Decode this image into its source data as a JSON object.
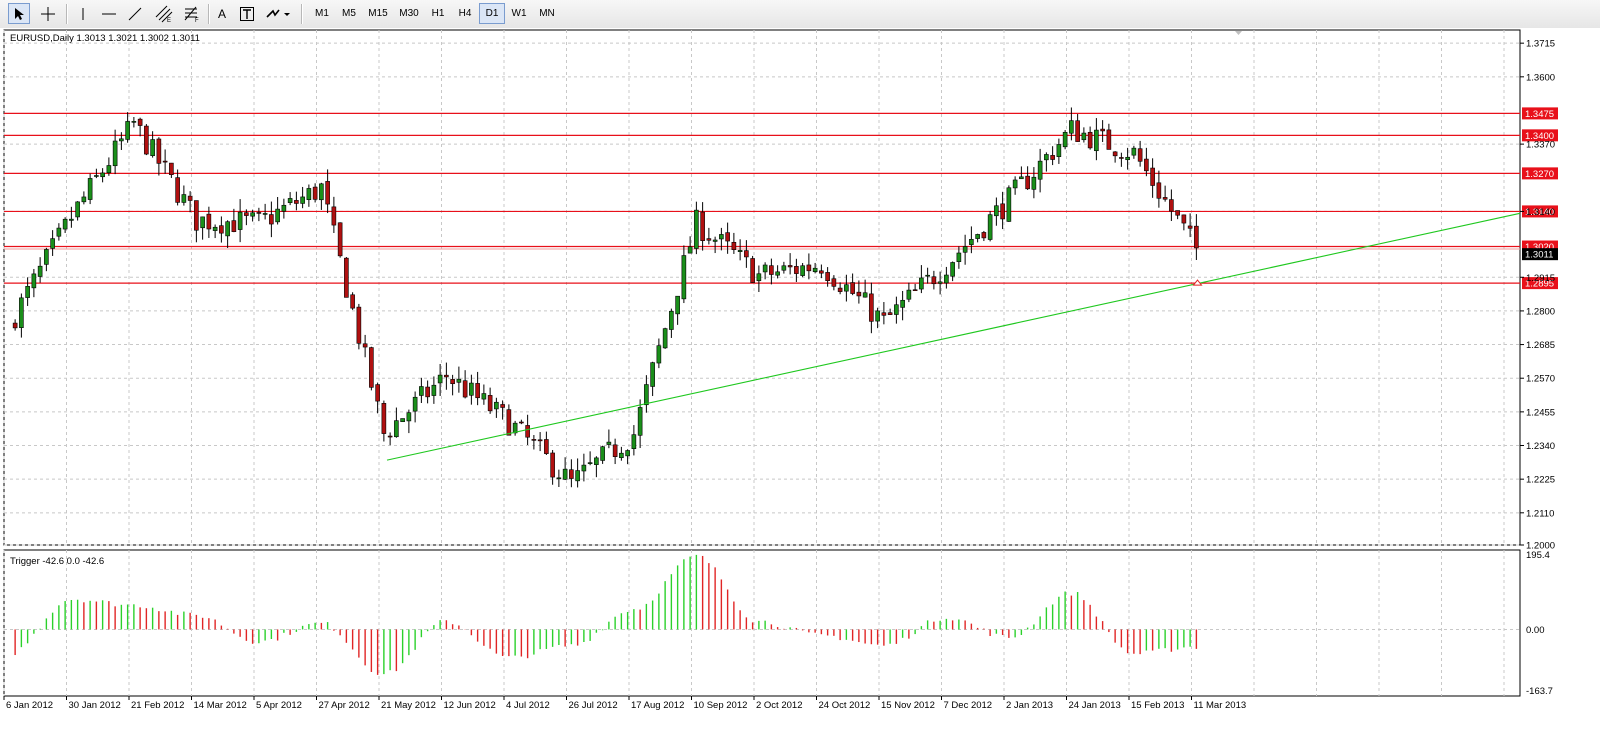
{
  "toolbar": {
    "tools": [
      {
        "name": "cursor-tool-icon"
      },
      {
        "name": "crosshair-tool-icon"
      },
      {
        "name": "vertical-line-tool-icon"
      },
      {
        "name": "horizontal-line-tool-icon"
      },
      {
        "name": "trendline-tool-icon"
      },
      {
        "name": "equidistant-channel-tool-icon"
      },
      {
        "name": "fibonacci-tool-icon"
      },
      {
        "name": "text-tool-icon"
      },
      {
        "name": "text-label-tool-icon"
      },
      {
        "name": "arrows-tool-icon"
      }
    ],
    "text_tool_label": "A",
    "timeframes": [
      "M1",
      "M5",
      "M15",
      "M30",
      "H1",
      "H4",
      "D1",
      "W1",
      "MN"
    ],
    "active_timeframe": "D1"
  },
  "main_panel": {
    "header": "EURUSD,Daily  1.3013 1.3021 1.3002 1.3011",
    "price_axis": [
      "1.3715",
      "1.3600",
      "1.3370",
      "1.3140",
      "1.2915",
      "1.2800",
      "1.2685",
      "1.2570",
      "1.2455",
      "1.2340",
      "1.2225",
      "1.2110",
      "1.2000"
    ],
    "level_lines": [
      {
        "label": "1.3475",
        "value": 1.3475
      },
      {
        "label": "1.3400",
        "value": 1.34
      },
      {
        "label": "1.3270",
        "value": 1.327
      },
      {
        "label": "1.3140",
        "value": 1.314
      },
      {
        "label": "1.3020",
        "value": 1.302
      },
      {
        "label": "1.2895",
        "value": 1.2895
      }
    ],
    "current_price_label": "1.3011",
    "colors": {
      "level": "#e8101a",
      "trend": "#1fc81f",
      "bull": "#1a8f1a",
      "bear": "#b01010",
      "wick": "#000000"
    }
  },
  "sub_panel": {
    "header": "Trigger -42.6 0.0 -42.6",
    "axis_labels": [
      "195.4",
      "0.00",
      "-163.7"
    ],
    "colors": {
      "positive": "#2bd12b",
      "negative": "#e02525"
    }
  },
  "time_axis": [
    "6 Jan 2012",
    "30 Jan 2012",
    "21 Feb 2012",
    "14 Mar 2012",
    "5 Apr 2012",
    "27 Apr 2012",
    "21 May 2012",
    "12 Jun 2012",
    "4 Jul 2012",
    "26 Jul 2012",
    "17 Aug 2012",
    "10 Sep 2012",
    "2 Oct 2012",
    "24 Oct 2012",
    "15 Nov 2012",
    "7 Dec 2012",
    "2 Jan 2013",
    "24 Jan 2013",
    "15 Feb 2013",
    "11 Mar 2013"
  ],
  "chart_data": {
    "type": "candlestick",
    "symbol": "EURUSD",
    "timeframe": "Daily",
    "ohlc_last": {
      "open": 1.3013,
      "high": 1.3021,
      "low": 1.3002,
      "close": 1.3011
    },
    "ylim": [
      1.2,
      1.376
    ],
    "price_path": [
      {
        "date": "6 Jan 2012",
        "price": 1.275
      },
      {
        "date": "30 Jan 2012",
        "price": 1.312
      },
      {
        "date": "21 Feb 2012",
        "price": 1.344
      },
      {
        "date": "14 Mar 2012",
        "price": 1.311
      },
      {
        "date": "5 Apr 2012",
        "price": 1.31
      },
      {
        "date": "27 Apr 2012",
        "price": 1.322
      },
      {
        "date": "21 May 2012",
        "price": 1.238
      },
      {
        "date": "12 Jun 2012",
        "price": 1.258
      },
      {
        "date": "4 Jul 2012",
        "price": 1.242
      },
      {
        "date": "26 Jul 2012",
        "price": 1.221
      },
      {
        "date": "17 Aug 2012",
        "price": 1.238
      },
      {
        "date": "10 Sep 2012",
        "price": 1.31
      },
      {
        "date": "2 Oct 2012",
        "price": 1.292
      },
      {
        "date": "24 Oct 2012",
        "price": 1.296
      },
      {
        "date": "15 Nov 2012",
        "price": 1.276
      },
      {
        "date": "7 Dec 2012",
        "price": 1.296
      },
      {
        "date": "2 Jan 2013",
        "price": 1.318
      },
      {
        "date": "24 Jan 2013",
        "price": 1.342
      },
      {
        "date": "15 Feb 2013",
        "price": 1.334
      },
      {
        "date": "11 Mar 2013",
        "price": 1.3011
      }
    ],
    "trendline": {
      "start": {
        "date": "21 May 2012",
        "price": 1.229
      },
      "end": {
        "date": "11 Mar 2013",
        "price": 1.2895
      }
    },
    "indicator": {
      "name": "Trigger",
      "ylim": [
        -163.7,
        195.4
      ],
      "path": [
        {
          "date": "6 Jan 2012",
          "value": -60
        },
        {
          "date": "30 Jan 2012",
          "value": 75
        },
        {
          "date": "21 Feb 2012",
          "value": 60
        },
        {
          "date": "14 Mar 2012",
          "value": 35
        },
        {
          "date": "5 Apr 2012",
          "value": -30
        },
        {
          "date": "27 Apr 2012",
          "value": 15
        },
        {
          "date": "21 May 2012",
          "value": -110
        },
        {
          "date": "12 Jun 2012",
          "value": 20
        },
        {
          "date": "4 Jul 2012",
          "value": -70
        },
        {
          "date": "26 Jul 2012",
          "value": -40
        },
        {
          "date": "17 Aug 2012",
          "value": 50
        },
        {
          "date": "10 Sep 2012",
          "value": 180
        },
        {
          "date": "2 Oct 2012",
          "value": 20
        },
        {
          "date": "24 Oct 2012",
          "value": -15
        },
        {
          "date": "15 Nov 2012",
          "value": -40
        },
        {
          "date": "7 Dec 2012",
          "value": 30
        },
        {
          "date": "2 Jan 2013",
          "value": -20
        },
        {
          "date": "24 Jan 2013",
          "value": 90
        },
        {
          "date": "15 Feb 2013",
          "value": -60
        },
        {
          "date": "11 Mar 2013",
          "value": -42.6
        }
      ]
    }
  }
}
